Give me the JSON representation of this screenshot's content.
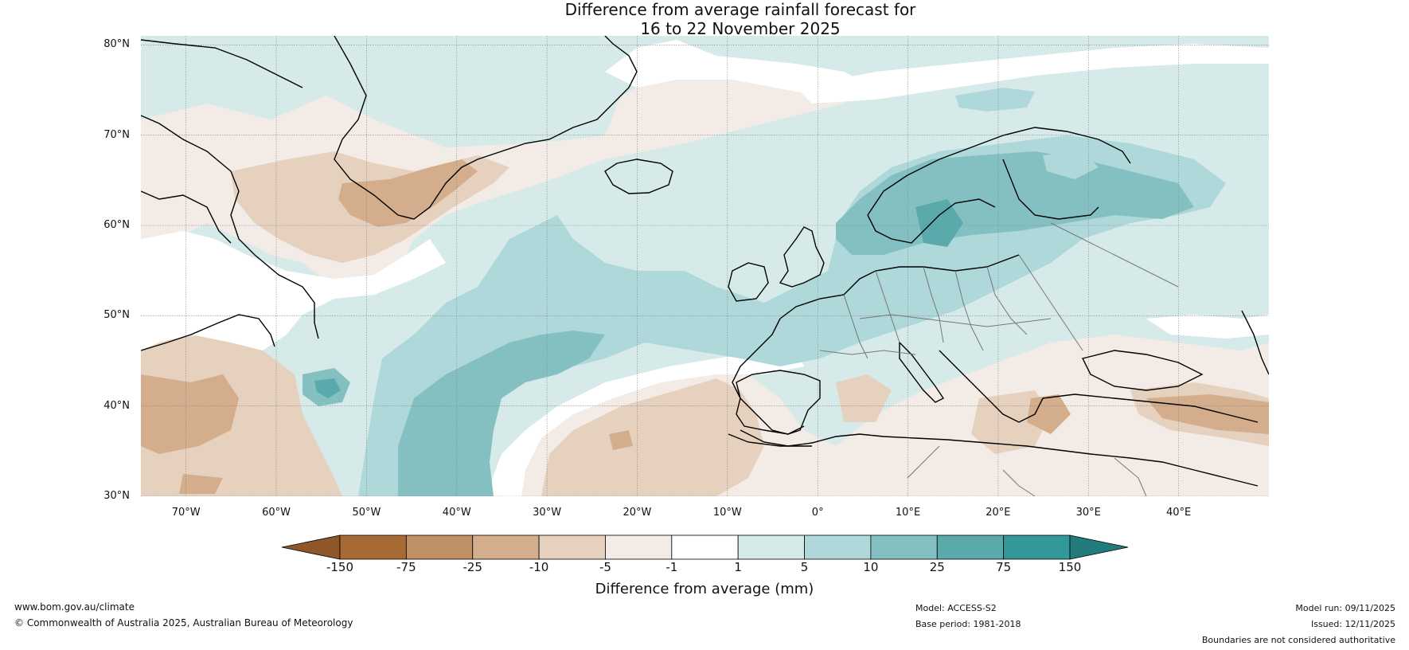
{
  "title": {
    "line1": "Difference from average rainfall forecast for",
    "line2": "16 to 22 November 2025"
  },
  "map": {
    "lat_labels": [
      "80°N",
      "70°N",
      "60°N",
      "50°N",
      "40°N",
      "30°N"
    ],
    "lat_values": [
      80,
      70,
      60,
      50,
      40,
      30
    ],
    "lon_labels": [
      "70°W",
      "60°W",
      "50°W",
      "40°W",
      "30°W",
      "20°W",
      "10°W",
      "0°",
      "10°E",
      "20°E",
      "30°E",
      "40°E"
    ],
    "lon_values": [
      -70,
      -60,
      -50,
      -40,
      -30,
      -20,
      -10,
      0,
      10,
      20,
      30,
      40
    ],
    "extent": {
      "lon_min": -75,
      "lon_max": 50,
      "lat_min": 30,
      "lat_max": 81
    }
  },
  "colorbar": {
    "ticks": [
      "-150",
      "-75",
      "-25",
      "-10",
      "-5",
      "-1",
      "1",
      "5",
      "10",
      "25",
      "75",
      "150"
    ],
    "colors": [
      "#a76a35",
      "#c09066",
      "#d3ad8c",
      "#e6d1bf",
      "#f3ebe5",
      "#ffffff",
      "#d6eaea",
      "#aed8d9",
      "#84c0c1",
      "#5aa9ab",
      "#33989a"
    ],
    "under_color": "#8e5727",
    "over_color": "#247b7e",
    "label": "Difference from average (mm)"
  },
  "footer": {
    "website": "www.bom.gov.au/climate",
    "copyright": "© Commonwealth of Australia 2025, Australian Bureau of Meteorology",
    "model": "Model: ACCESS-S2",
    "base_period": "Base period: 1981-2018",
    "model_run": "Model run: 09/11/2025",
    "issued": "Issued: 12/11/2025",
    "disclaimer": "Boundaries are not considered authoritative"
  }
}
